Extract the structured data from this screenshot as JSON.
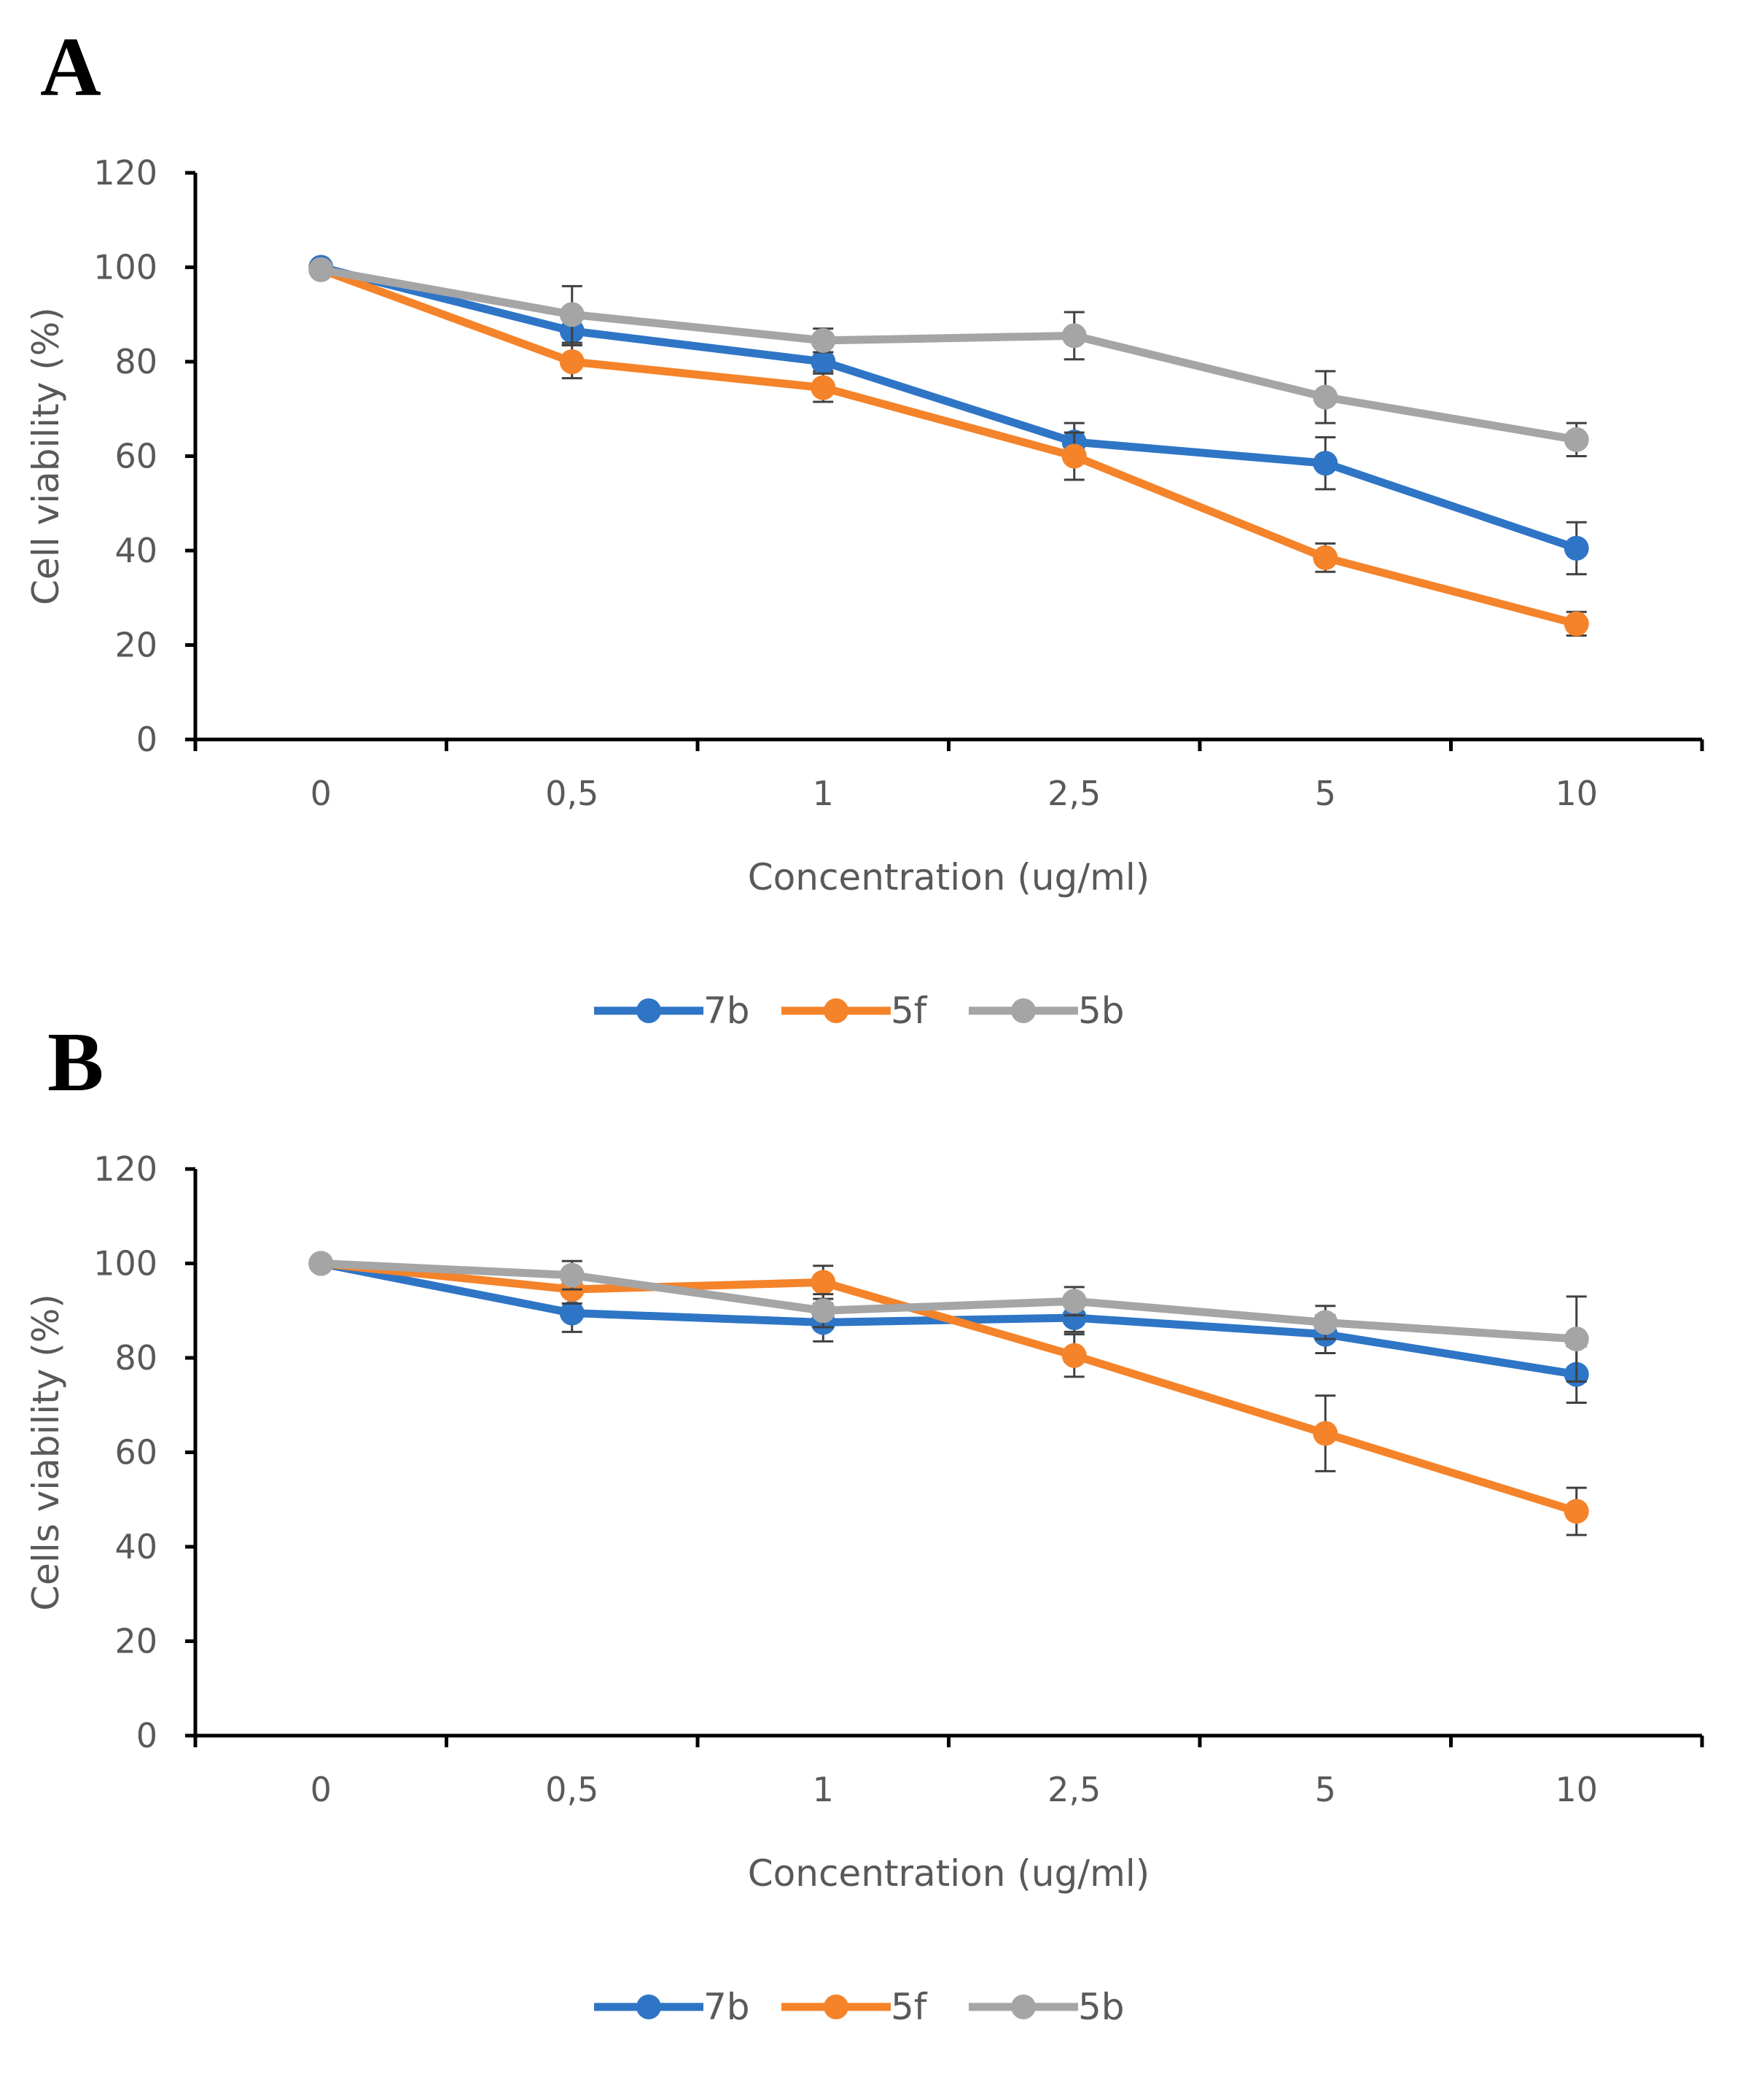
{
  "chart_data": [
    {
      "panel": "A",
      "type": "line",
      "categories": [
        "0",
        "0,5",
        "1",
        "2,5",
        "5",
        "10"
      ],
      "xlabel": "Concentration (ug/ml)",
      "ylabel": "Cell viability (%)",
      "ylim": [
        0,
        120
      ],
      "yticks": [
        0,
        20,
        40,
        60,
        80,
        100,
        120
      ],
      "grid": false,
      "legend": "bottom-center",
      "series": [
        {
          "name": "7b",
          "color": "#2E75C6",
          "values": [
            100,
            86.5,
            80,
            63,
            58.5,
            40.5
          ],
          "errors": [
            0,
            3,
            2,
            4,
            5.5,
            5.5
          ]
        },
        {
          "name": "5f",
          "color": "#F4832A",
          "values": [
            99.5,
            80,
            74.5,
            60,
            38.5,
            24.5
          ],
          "errors": [
            0,
            3.5,
            3,
            5,
            3,
            2.5
          ]
        },
        {
          "name": "5b",
          "color": "#A5A5A5",
          "values": [
            99.5,
            90,
            84.5,
            85.5,
            72.5,
            63.5
          ],
          "errors": [
            0,
            6,
            2.5,
            5,
            5.5,
            3.5
          ]
        }
      ]
    },
    {
      "panel": "B",
      "type": "line",
      "categories": [
        "0",
        "0,5",
        "1",
        "2,5",
        "5",
        "10"
      ],
      "xlabel": "Concentration (ug/ml)",
      "ylabel": "Cells viability (%)",
      "ylim": [
        0,
        120
      ],
      "yticks": [
        0,
        20,
        40,
        60,
        80,
        100,
        120
      ],
      "grid": false,
      "legend": "bottom-center",
      "series": [
        {
          "name": "7b",
          "color": "#2E75C6",
          "values": [
            100,
            89.5,
            87.5,
            88.5,
            85,
            76.5
          ],
          "errors": [
            0,
            4,
            4,
            3,
            4,
            6
          ]
        },
        {
          "name": "5f",
          "color": "#F4832A",
          "values": [
            100,
            94.5,
            96,
            80.5,
            64,
            47.5
          ],
          "errors": [
            0,
            3,
            3.5,
            4.5,
            8,
            5
          ]
        },
        {
          "name": "5b",
          "color": "#A5A5A5",
          "values": [
            100,
            97.5,
            90,
            92,
            87.5,
            84
          ],
          "errors": [
            0,
            3,
            3.5,
            3,
            3.5,
            9
          ]
        }
      ]
    }
  ]
}
